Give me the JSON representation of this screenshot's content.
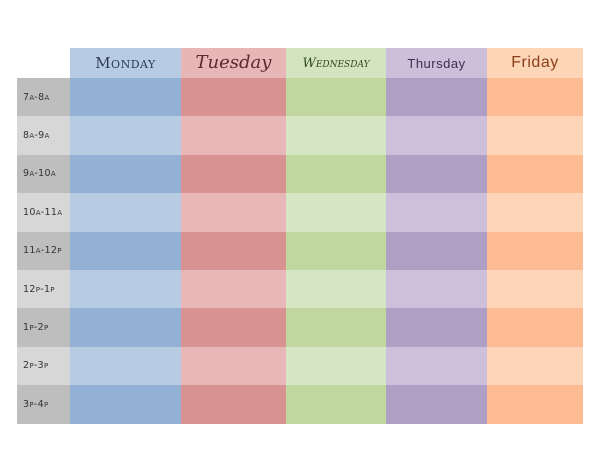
{
  "days": [
    {
      "label": "Monday",
      "header_color": "#b7cbe3",
      "dark": "#93b1d5",
      "light": "#b7cbe3"
    },
    {
      "label": "Tuesday",
      "header_color": "#e7b6b6",
      "dark": "#d99292",
      "light": "#e8b7b7"
    },
    {
      "label": "Wednesday",
      "header_color": "#d4e4c1",
      "dark": "#c0d8a0",
      "light": "#d6e5c3"
    },
    {
      "label": "Thursday",
      "header_color": "#cdbfd9",
      "dark": "#b09fc5",
      "light": "#cebfdb"
    },
    {
      "label": "Friday",
      "header_color": "#fdd6b8",
      "dark": "#fcbb92",
      "light": "#fdd5b8"
    }
  ],
  "time_column": {
    "dark": "#bebebe",
    "light": "#d7d7d7"
  },
  "times": [
    "7a-8a",
    "8a-9a",
    "9a-10a",
    "10a-11a",
    "11a-12p",
    "12p-1p",
    "1p-2p",
    "2p-3p",
    "3p-4p"
  ]
}
